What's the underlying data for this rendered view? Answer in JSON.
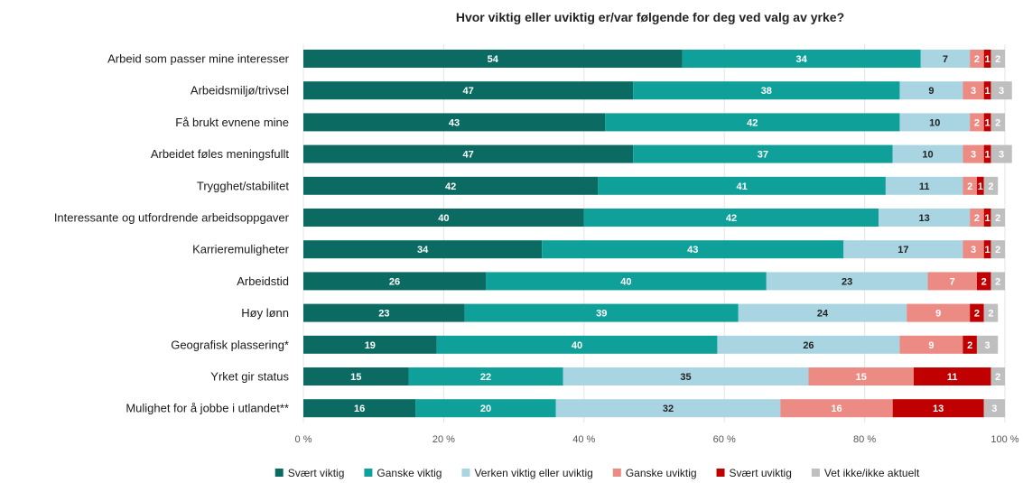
{
  "chart_data": {
    "type": "bar",
    "orientation": "horizontal",
    "stacked": true,
    "title": "Hvor viktig eller uviktig er/var følgende for deg ved valg av yrke?",
    "xlabel": "",
    "ylabel": "",
    "xlim": [
      0,
      100
    ],
    "x_ticks": [
      "0 %",
      "20 %",
      "40 %",
      "60 %",
      "80 %",
      "100 %"
    ],
    "legend_position": "bottom",
    "categories": [
      "Arbeid som passer mine interesser",
      "Arbeidsmiljø/trivsel",
      "Få brukt evnene mine",
      "Arbeidet føles meningsfullt",
      "Trygghet/stabilitet",
      "Interessante og utfordrende arbeidsoppgaver",
      "Karrieremuligheter",
      "Arbeidstid",
      "Høy lønn",
      "Geografisk plassering*",
      "Yrket gir status",
      "Mulighet for å jobbe i utlandet**"
    ],
    "series": [
      {
        "name": "Svært viktig",
        "color": "#0b6b63",
        "label_color": "#ffffff",
        "values": [
          54,
          47,
          43,
          47,
          42,
          40,
          34,
          26,
          23,
          19,
          15,
          16
        ]
      },
      {
        "name": "Ganske viktig",
        "color": "#0fa09a",
        "label_color": "#ffffff",
        "values": [
          34,
          38,
          42,
          37,
          41,
          42,
          43,
          40,
          39,
          40,
          22,
          20
        ]
      },
      {
        "name": "Verken viktig eller uviktig",
        "color": "#a9d5e3",
        "label_color": "#222222",
        "values": [
          7,
          9,
          10,
          10,
          11,
          13,
          17,
          23,
          24,
          26,
          35,
          32
        ]
      },
      {
        "name": "Ganske uviktig",
        "color": "#ec8a84",
        "label_color": "#ffffff",
        "values": [
          2,
          3,
          2,
          3,
          2,
          2,
          3,
          7,
          9,
          9,
          15,
          16
        ]
      },
      {
        "name": "Svært uviktig",
        "color": "#c00000",
        "label_color": "#ffffff",
        "values": [
          1,
          1,
          1,
          1,
          1,
          1,
          1,
          2,
          2,
          2,
          11,
          13
        ]
      },
      {
        "name": "Vet ikke/ikke aktuelt",
        "color": "#bfbfbf",
        "label_color": "#ffffff",
        "values": [
          2,
          3,
          2,
          3,
          2,
          2,
          2,
          2,
          2,
          3,
          2,
          3
        ]
      }
    ]
  }
}
